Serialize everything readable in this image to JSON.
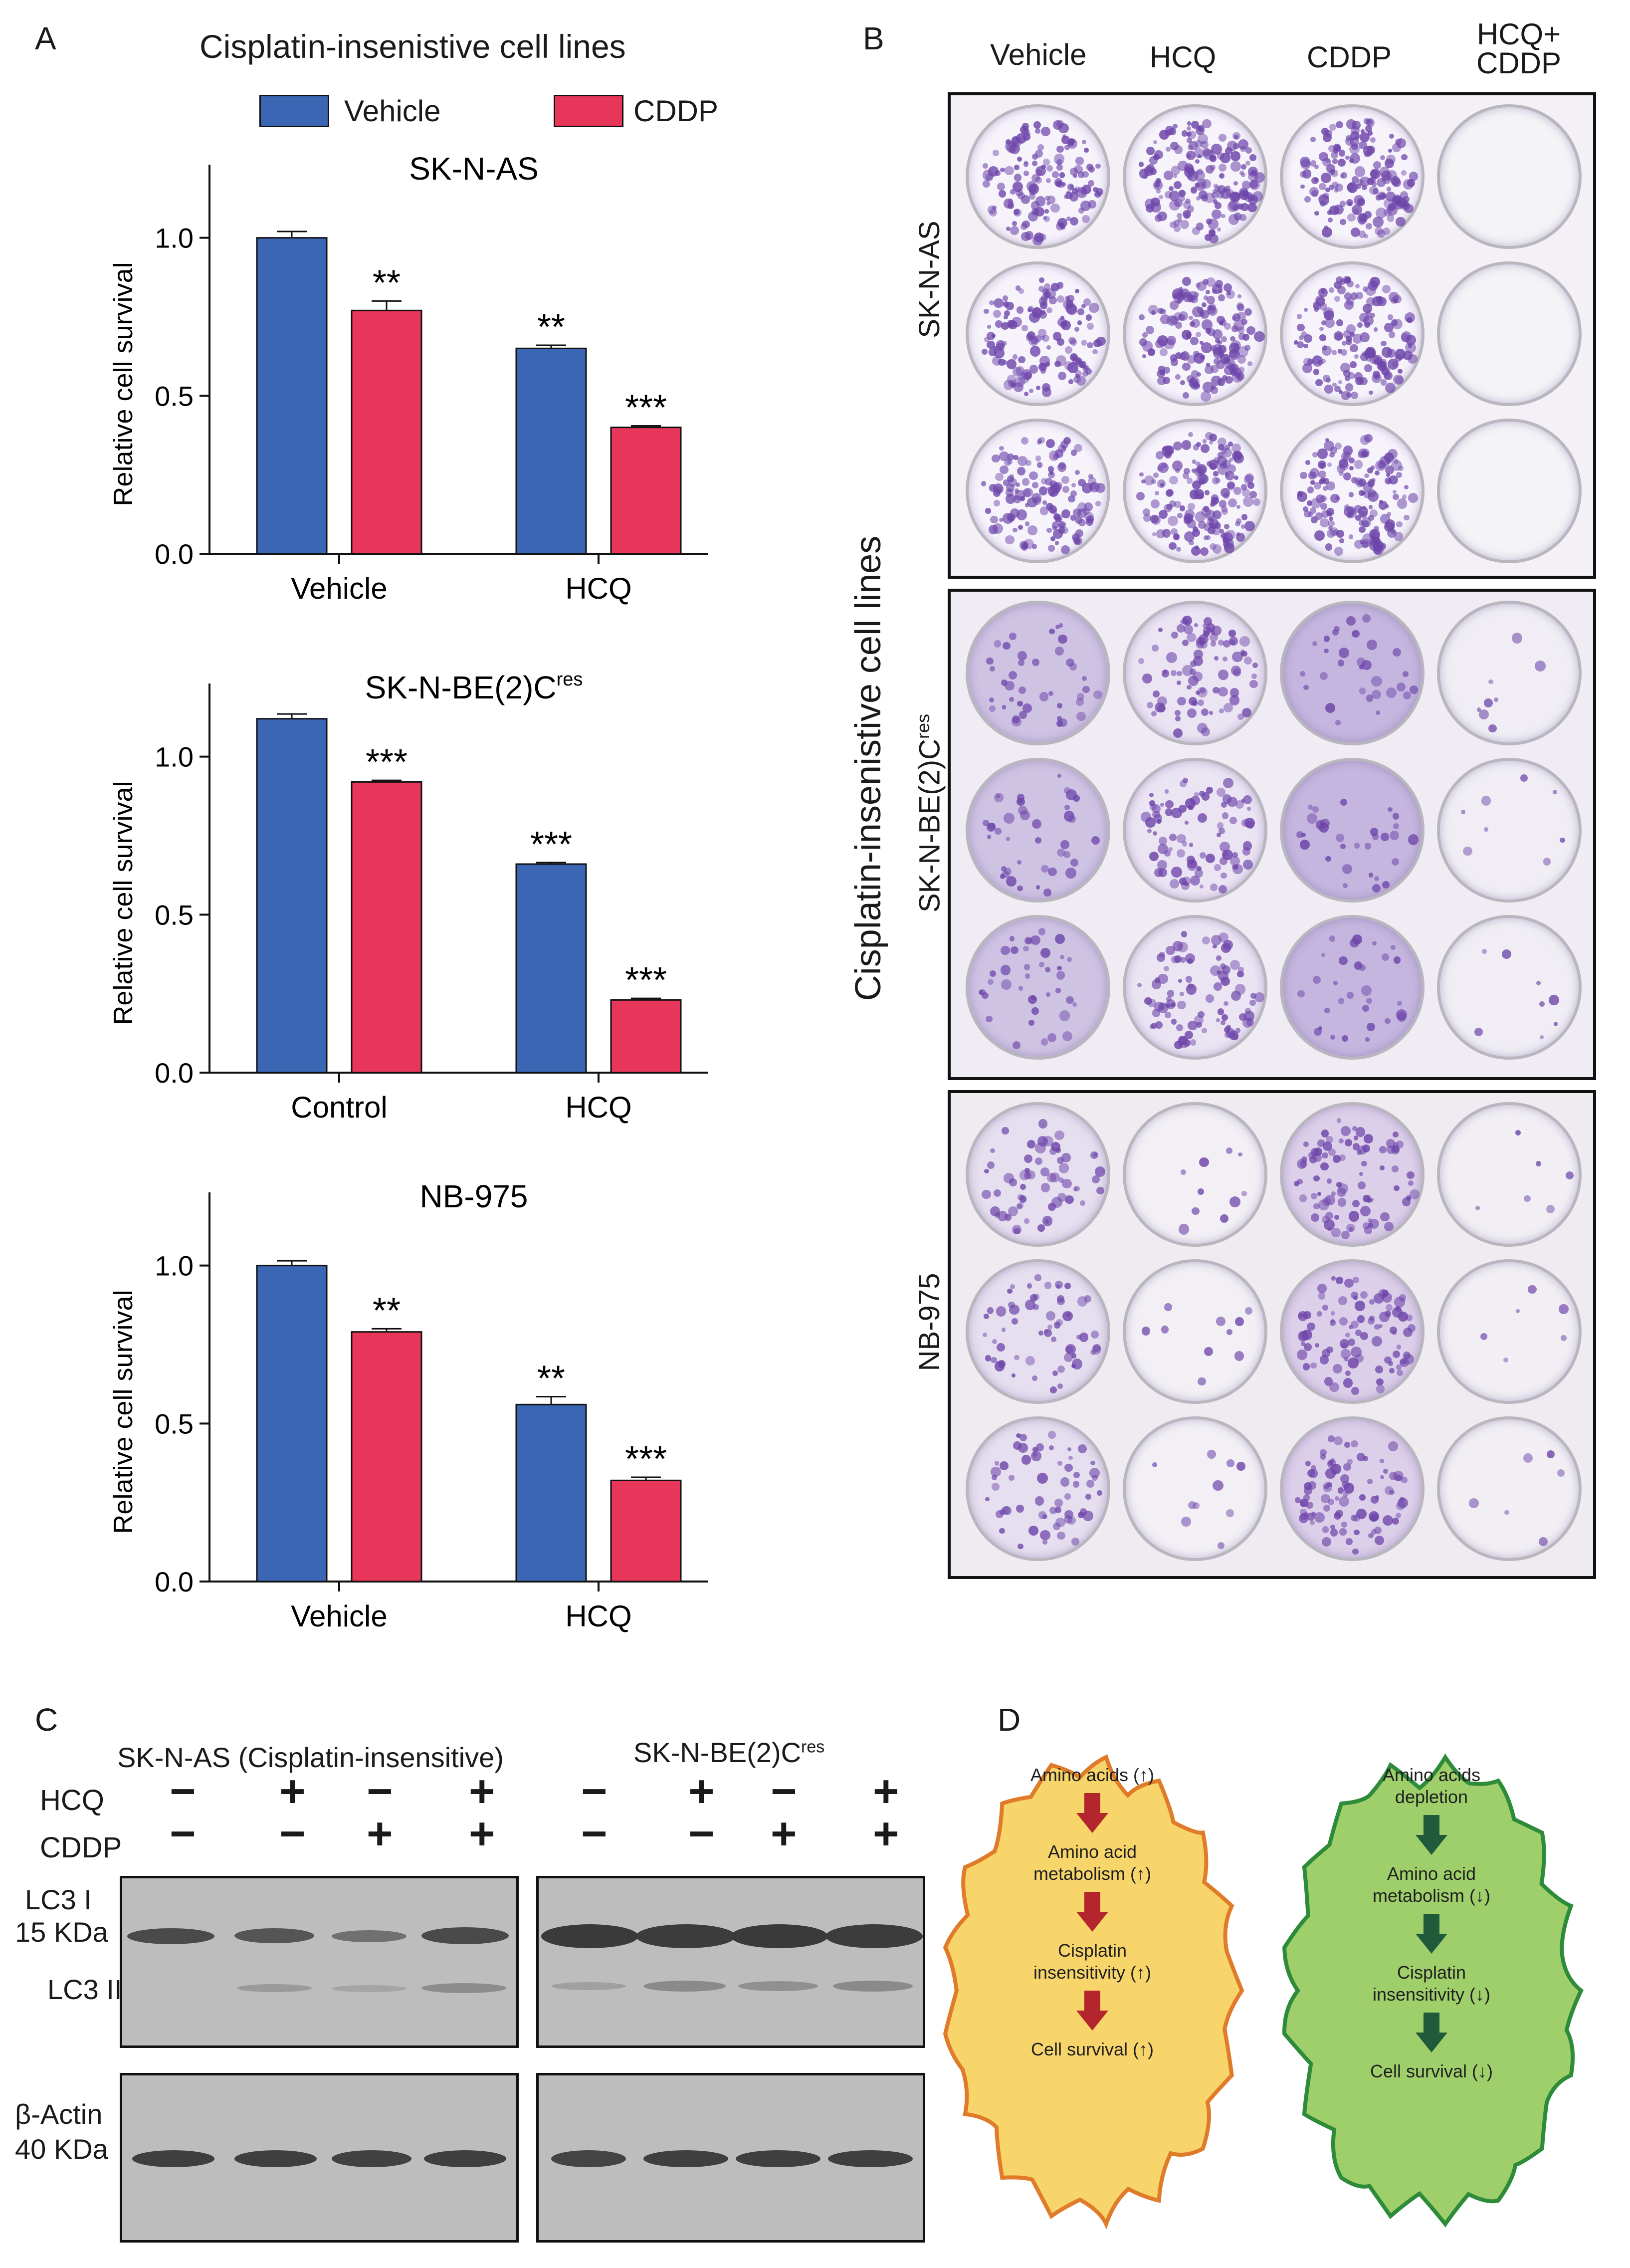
{
  "panels": {
    "A": {
      "letter": "A",
      "title": "Cisplatin-insenistive cell lines",
      "legend": [
        {
          "label": "Vehicle",
          "color": "#3a66b3"
        },
        {
          "label": "CDDP",
          "color": "#e8365a"
        }
      ]
    },
    "B": {
      "letter": "B",
      "columns": [
        "Vehicle",
        "HCQ",
        "CDDP",
        "HCQ+\nCDDP"
      ],
      "side_label": "Cisplatin-insenistive cell lines",
      "rows": [
        {
          "label": "SK-N-AS"
        },
        {
          "label": "SK-N-BE(2)C",
          "sup": "res"
        },
        {
          "label": "NB-975"
        }
      ]
    },
    "C": {
      "letter": "C",
      "group1": "SK-N-AS (Cisplatin-insensitive)",
      "group2": "SK-N-BE(2)C",
      "group2_sup": "res",
      "row_labels": {
        "hcq": "HCQ",
        "cddp": "CDDP"
      },
      "hcq_signs": [
        "−",
        "+",
        "−",
        "+",
        "−",
        "+",
        "−",
        "+"
      ],
      "cddp_signs": [
        "−",
        "−",
        "+",
        "+",
        "−",
        "−",
        "+",
        "+"
      ],
      "blot_labels": {
        "lc3_1": "LC3 I",
        "lc3_kda": "15 KDa",
        "lc3_2": "LC3 II",
        "actin": "β-Actin",
        "actin_kda": "40 KDa"
      }
    },
    "D": {
      "letter": "D",
      "left": {
        "steps": [
          "Amino acids (↑)",
          "Amino acid",
          "metabolism (↑)",
          "Cisplatin",
          "insensitivity (↑)",
          "Cell survival (↑)"
        ],
        "fill": "#f7d56a",
        "stroke": "#e07b2a",
        "arrow": "#b3262d"
      },
      "right": {
        "steps": [
          "Amino acids",
          "depletion",
          "Amino acid",
          "metabolism (↓)",
          "Cisplatin",
          "insensitivity (↓)",
          "Cell survival (↓)"
        ],
        "fill": "#9fcf6b",
        "stroke": "#2e8b3a",
        "arrow": "#1f5a3a"
      }
    }
  },
  "chart_data": [
    {
      "type": "bar",
      "title": "SK-N-AS",
      "categories": [
        "Vehicle",
        "HCQ"
      ],
      "series": [
        {
          "name": "Vehicle",
          "values": [
            1.0,
            0.65
          ],
          "errors": [
            0.02,
            0.01
          ]
        },
        {
          "name": "CDDP",
          "values": [
            0.77,
            0.4
          ],
          "errors": [
            0.03,
            0.005
          ]
        }
      ],
      "significance": [
        [
          "",
          "**"
        ],
        [
          "**",
          "***"
        ]
      ],
      "ylabel": "Relative cell survival",
      "ylim": [
        0,
        1.2
      ],
      "yticks": [
        "0.0",
        "0.5",
        "1.0"
      ]
    },
    {
      "type": "bar",
      "title": "SK-N-BE(2)C",
      "title_sup": "res",
      "categories": [
        "Control",
        "HCQ"
      ],
      "series": [
        {
          "name": "Vehicle",
          "values": [
            1.12,
            0.66
          ],
          "errors": [
            0.015,
            0.005
          ]
        },
        {
          "name": "CDDP",
          "values": [
            0.92,
            0.23
          ],
          "errors": [
            0.005,
            0.005
          ]
        }
      ],
      "significance": [
        [
          "",
          "***"
        ],
        [
          "***",
          "***"
        ]
      ],
      "ylabel": "Relative cell survival",
      "ylim": [
        0,
        1.2
      ],
      "yticks": [
        "0.0",
        "0.5",
        "1.0"
      ]
    },
    {
      "type": "bar",
      "title": "NB-975",
      "categories": [
        "Vehicle",
        "HCQ"
      ],
      "series": [
        {
          "name": "Vehicle",
          "values": [
            1.0,
            0.56
          ],
          "errors": [
            0.015,
            0.025
          ]
        },
        {
          "name": "CDDP",
          "values": [
            0.79,
            0.32
          ],
          "errors": [
            0.01,
            0.01
          ]
        }
      ],
      "significance": [
        [
          "",
          "**"
        ],
        [
          "**",
          "***"
        ]
      ],
      "ylabel": "Relative cell survival",
      "ylim": [
        0,
        1.2
      ],
      "yticks": [
        "0.0",
        "0.5",
        "1.0"
      ]
    }
  ]
}
